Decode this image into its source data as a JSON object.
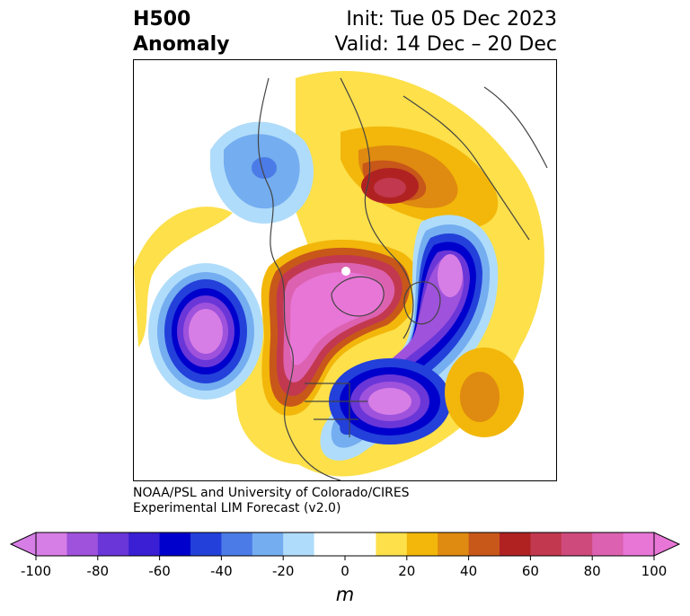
{
  "header": {
    "title_line1": "H500",
    "title_line2": "Anomaly",
    "init_text": "Init: Tue 05 Dec 2023",
    "valid_text": "Valid: 14 Dec – 20 Dec"
  },
  "credit": {
    "line1": "NOAA/PSL and University of Colorado/CIRES",
    "line2": "Experimental LIM Forecast (v2.0)"
  },
  "colorbar": {
    "unit_label": "m",
    "tick_labels": [
      "-100",
      "-80",
      "-60",
      "-40",
      "-20",
      "0",
      "20",
      "40",
      "60",
      "80",
      "100"
    ],
    "colors": [
      "#d77ee6",
      "#9f52dc",
      "#6a36d8",
      "#3a1fd4",
      "#0000cc",
      "#2340da",
      "#4b7be6",
      "#74adf0",
      "#afdcfa",
      "#ffffff",
      "#ffffff",
      "#fde04a",
      "#f2b70a",
      "#df8a10",
      "#c8571a",
      "#b02222",
      "#c2384f",
      "#cf4a7c",
      "#dc62b1",
      "#e876d6"
    ]
  },
  "colors": {
    "land_outline": "#444444"
  }
}
